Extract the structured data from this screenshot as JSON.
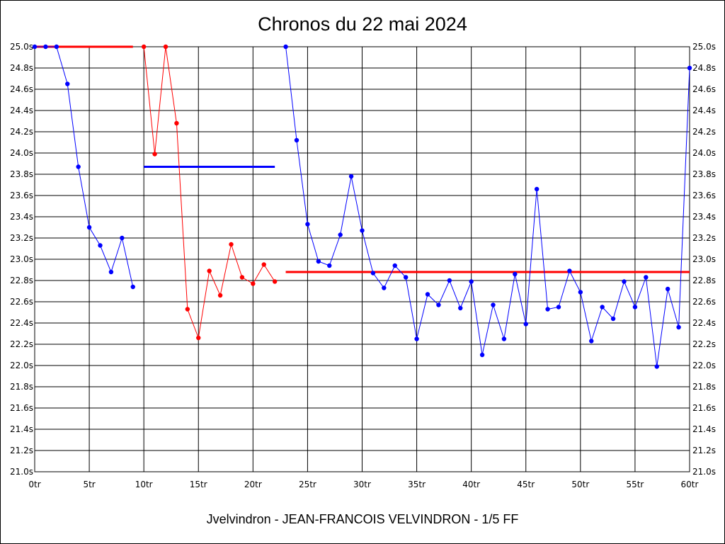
{
  "chart_data": {
    "type": "line",
    "title": "Chronos du 22 mai 2024",
    "footer": "Jvelvindron - JEAN-FRANCOIS VELVINDRON - 1/5 FF",
    "xlabel": "",
    "ylabel": "",
    "xlim": [
      0,
      60
    ],
    "ylim": [
      21.0,
      25.0
    ],
    "grid": true,
    "x_ticks": [
      0,
      5,
      10,
      15,
      20,
      25,
      30,
      35,
      40,
      45,
      50,
      55,
      60
    ],
    "x_tick_labels": [
      "0tr",
      "5tr",
      "10tr",
      "15tr",
      "20tr",
      "25tr",
      "30tr",
      "35tr",
      "40tr",
      "45tr",
      "50tr",
      "55tr",
      "60tr"
    ],
    "y_ticks": [
      21.0,
      21.2,
      21.4,
      21.6,
      21.8,
      22.0,
      22.2,
      22.4,
      22.6,
      22.8,
      23.0,
      23.2,
      23.4,
      23.6,
      23.8,
      24.0,
      24.2,
      24.4,
      24.6,
      24.8,
      25.0
    ],
    "y_tick_labels": [
      "21.0s",
      "21.2s",
      "21.4s",
      "21.6s",
      "21.8s",
      "22.0s",
      "22.2s",
      "22.4s",
      "22.6s",
      "22.8s",
      "23.0s",
      "23.2s",
      "23.4s",
      "23.6s",
      "23.8s",
      "24.0s",
      "24.2s",
      "24.4s",
      "24.6s",
      "24.8s",
      "25.0s"
    ],
    "series": [
      {
        "color": "#0000ff",
        "x": [
          0,
          1,
          2,
          3,
          4,
          5,
          6,
          7,
          8,
          9
        ],
        "values": [
          25.0,
          25.0,
          25.0,
          24.65,
          23.87,
          23.3,
          23.13,
          22.88,
          23.2,
          22.74
        ]
      },
      {
        "color": "#ff0000",
        "x": [
          10,
          11,
          12,
          13,
          14,
          15,
          16,
          17,
          18,
          19,
          20,
          21,
          22
        ],
        "values": [
          25.0,
          23.99,
          25.0,
          24.28,
          22.53,
          22.26,
          22.89,
          22.66,
          23.14,
          22.83,
          22.77,
          22.95,
          22.79
        ]
      },
      {
        "color": "#0000ff",
        "x": [
          23,
          24,
          25,
          26,
          27,
          28,
          29,
          30,
          31,
          32,
          33,
          34,
          35,
          36,
          37,
          38,
          39,
          40,
          41,
          42,
          43,
          44,
          45,
          46,
          47,
          48,
          49,
          50,
          51,
          52,
          53,
          54,
          55,
          56,
          57,
          58,
          59,
          60
        ],
        "values": [
          25.0,
          24.12,
          23.33,
          22.98,
          22.94,
          23.23,
          23.78,
          23.27,
          22.87,
          22.73,
          22.94,
          22.83,
          22.25,
          22.67,
          22.57,
          22.8,
          22.54,
          22.79,
          22.1,
          22.57,
          22.25,
          22.86,
          22.39,
          23.66,
          22.53,
          22.55,
          22.89,
          22.69,
          22.23,
          22.55,
          22.44,
          22.79,
          22.55,
          22.83,
          21.99,
          22.72,
          22.36,
          24.8
        ]
      }
    ],
    "reference_lines": [
      {
        "color": "#ff0000",
        "x_start": 0,
        "x_end": 9,
        "value": 25.0
      },
      {
        "color": "#0000ff",
        "x_start": 10,
        "x_end": 22,
        "value": 23.87
      },
      {
        "color": "#ff0000",
        "x_start": 23,
        "x_end": 60,
        "value": 22.88
      }
    ]
  }
}
